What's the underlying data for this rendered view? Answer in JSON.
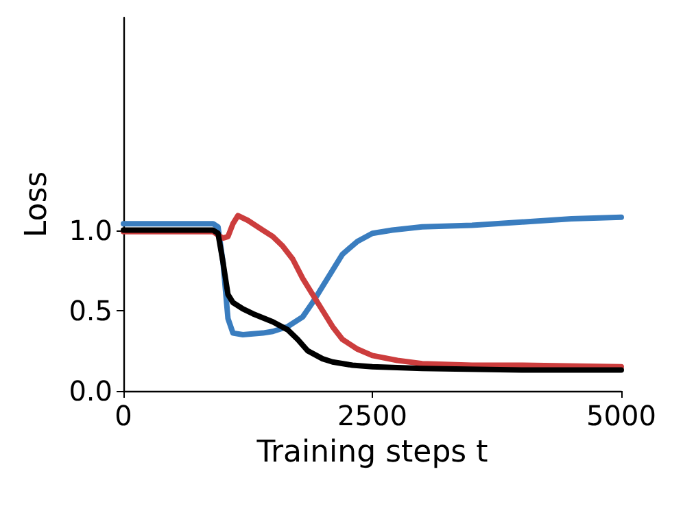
{
  "chart_data": {
    "type": "line",
    "xlabel": "Training steps t",
    "ylabel": "Loss",
    "xlim": [
      0,
      5000
    ],
    "xticks": [
      0,
      2500,
      5000
    ],
    "ylim": [
      0,
      2.32
    ],
    "yticks": [
      {
        "value": 0,
        "label": "0.0"
      },
      {
        "value": 0.5,
        "label": "0.5"
      },
      {
        "value": 1,
        "label": "1.0"
      }
    ],
    "grid": false,
    "marker": "none",
    "line_style": "solid",
    "series": [
      {
        "color": "#3a7dbf",
        "x": [
          0,
          500,
          900,
          950,
          1000,
          1050,
          1100,
          1200,
          1400,
          1500,
          1650,
          1800,
          1900,
          2000,
          2100,
          2200,
          2350,
          2500,
          2700,
          3000,
          3500,
          4000,
          4500,
          5000
        ],
        "values": [
          1.04,
          1.04,
          1.04,
          1.02,
          0.8,
          0.45,
          0.36,
          0.35,
          0.36,
          0.37,
          0.4,
          0.46,
          0.55,
          0.65,
          0.75,
          0.85,
          0.93,
          0.98,
          1.0,
          1.02,
          1.03,
          1.05,
          1.07,
          1.08
        ]
      },
      {
        "color": "#cc3d3d",
        "x": [
          0,
          500,
          900,
          1000,
          1050,
          1100,
          1150,
          1250,
          1400,
          1500,
          1600,
          1700,
          1800,
          1900,
          2000,
          2100,
          2200,
          2350,
          2500,
          2750,
          3000,
          3500,
          4000,
          5000
        ],
        "values": [
          0.99,
          0.99,
          0.99,
          0.95,
          0.96,
          1.04,
          1.09,
          1.06,
          1.0,
          0.96,
          0.9,
          0.82,
          0.7,
          0.6,
          0.5,
          0.4,
          0.32,
          0.26,
          0.22,
          0.19,
          0.17,
          0.16,
          0.16,
          0.15
        ]
      },
      {
        "color": "#000000",
        "x": [
          0,
          500,
          900,
          950,
          1000,
          1050,
          1100,
          1200,
          1300,
          1500,
          1650,
          1750,
          1850,
          2000,
          2100,
          2300,
          2500,
          3000,
          4000,
          5000
        ],
        "values": [
          1.0,
          1.0,
          1.0,
          0.98,
          0.8,
          0.6,
          0.55,
          0.51,
          0.48,
          0.43,
          0.38,
          0.32,
          0.25,
          0.2,
          0.18,
          0.16,
          0.15,
          0.14,
          0.13,
          0.13
        ]
      }
    ]
  }
}
